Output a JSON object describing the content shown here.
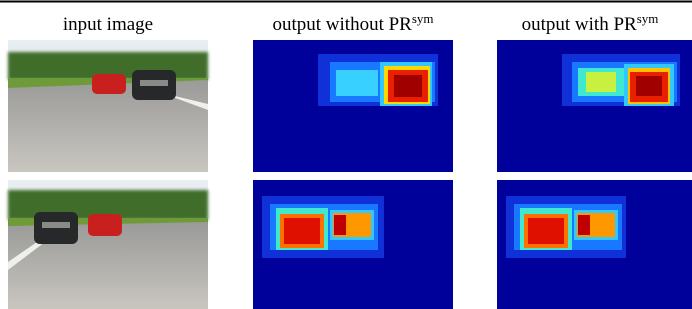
{
  "headers": [
    {
      "text": "input image"
    },
    {
      "text": "output without PR",
      "sup": "sym"
    },
    {
      "text": "output with PR",
      "sup": "sym"
    }
  ]
}
